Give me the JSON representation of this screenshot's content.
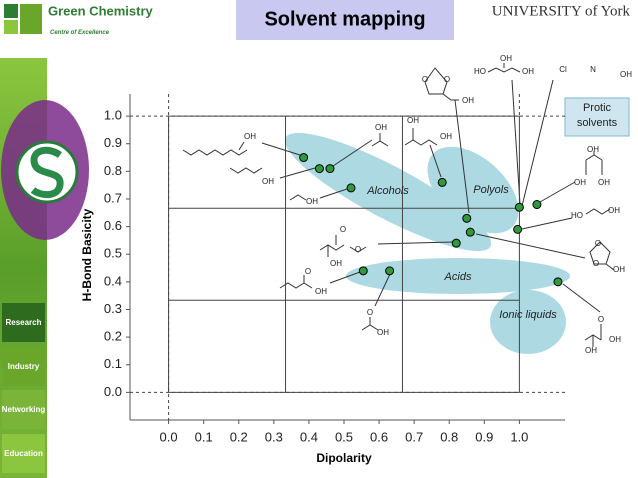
{
  "header": {
    "logo_title": "Green Chemistry",
    "logo_subtitle": "Centre of Excellence",
    "title": "Solvent mapping",
    "university": "UNIVERSITY of York"
  },
  "nav": [
    "Research",
    "Industry",
    "Networking",
    "Education"
  ],
  "chart_data": {
    "type": "scatter",
    "xlabel": "Dipolarity",
    "ylabel": "H-Bond Basicity",
    "x": [
      0.385,
      0.43,
      0.46,
      0.52,
      0.78,
      0.85,
      0.86,
      0.82,
      1.0,
      1.05,
      0.995,
      0.555,
      0.63,
      1.11
    ],
    "values": [
      0.85,
      0.81,
      0.81,
      0.74,
      0.76,
      0.63,
      0.58,
      0.54,
      0.67,
      0.68,
      0.59,
      0.44,
      0.44,
      0.4
    ],
    "color": "#2e9a3e",
    "xlim": [
      -0.11,
      1.13
    ],
    "ylim": [
      -0.1,
      1.08
    ],
    "xticks": [
      {
        "value": 0,
        "label": "0.0"
      },
      0.1,
      0.2,
      0.3,
      0.4,
      0.5,
      0.6,
      0.7,
      0.8,
      0.9,
      {
        "value": 1,
        "label": "1.0"
      }
    ],
    "yticks": [
      {
        "value": 0,
        "label": "0.0"
      },
      0.1,
      0.2,
      0.3,
      0.4,
      0.5,
      0.6,
      0.7,
      0.8,
      0.9,
      {
        "value": 1,
        "label": "1.0"
      }
    ],
    "regions": [
      "Alcohols",
      "Polyols",
      "Acids",
      "Ionic liquids"
    ],
    "protic_label": "Protic solvents",
    "structure_labels": [
      "OH",
      "OH",
      "OH",
      "OH",
      "OH",
      "OH",
      "OH",
      "HO",
      "OH",
      "Cl",
      "N",
      "OH",
      "O",
      "O",
      "OH",
      "OH",
      "OH",
      "OH",
      "HO",
      "OH",
      "O",
      "O",
      "OH",
      "O",
      "O",
      "OH",
      "O",
      "OH",
      "O",
      "OH",
      "O",
      "OH",
      "OH"
    ]
  }
}
